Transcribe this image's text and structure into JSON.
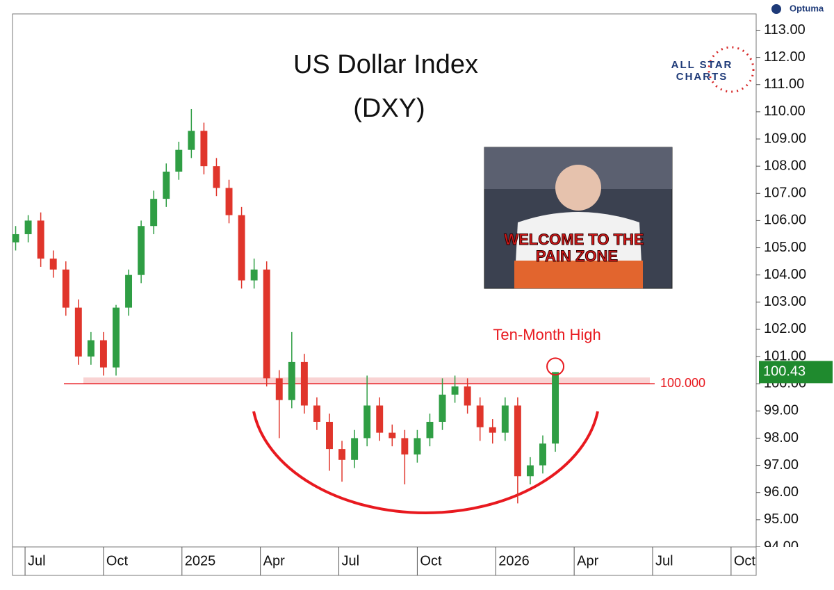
{
  "chart_data": {
    "type": "candlestick",
    "title": "US Dollar Index",
    "subtitle": "(DXY)",
    "annotation": "Ten-Month High",
    "image_caption": [
      "WELCOME TO THE",
      "PAIN ZONE"
    ],
    "logos": [
      "Optuma",
      "ALL STAR",
      "CHARTS"
    ],
    "up_color": "#2f9e44",
    "down_color": "#e0352b",
    "line_color": "#e8191f",
    "hline": {
      "value": 100,
      "label": "100.000"
    },
    "last_price": 100.43,
    "x": [
      2024.47,
      2024.51,
      2024.55,
      2024.59,
      2024.63,
      2024.67,
      2024.71,
      2024.75,
      2024.79,
      2024.83,
      2024.87,
      2024.91,
      2024.95,
      2024.99,
      2025.03,
      2025.07,
      2025.11,
      2025.15,
      2025.19,
      2025.23,
      2025.27,
      2025.31,
      2025.35,
      2025.39,
      2025.43,
      2025.47,
      2025.51,
      2025.55,
      2025.59,
      2025.63,
      2025.67,
      2025.71,
      2025.75,
      2025.79,
      2025.83,
      2025.87,
      2025.91,
      2025.95,
      2025.99,
      2026.03,
      2026.07,
      2026.11,
      2026.15,
      2026.19
    ],
    "open": [
      105.2,
      105.5,
      106.0,
      104.6,
      104.2,
      102.8,
      101.0,
      101.6,
      100.6,
      102.8,
      104.0,
      105.8,
      106.8,
      107.8,
      108.6,
      109.3,
      108.0,
      107.2,
      106.2,
      103.8,
      104.2,
      100.2,
      99.4,
      100.8,
      99.2,
      98.6,
      97.6,
      97.2,
      98.0,
      99.2,
      98.2,
      98.0,
      97.4,
      98.0,
      98.6,
      99.6,
      99.9,
      99.2,
      98.4,
      98.2,
      99.2,
      96.6,
      97.0,
      97.8
    ],
    "high": [
      105.8,
      106.2,
      106.3,
      104.9,
      104.5,
      103.1,
      101.9,
      101.9,
      102.9,
      104.2,
      106.0,
      107.1,
      108.1,
      108.9,
      110.1,
      109.6,
      108.3,
      107.5,
      106.5,
      104.6,
      104.5,
      100.5,
      101.9,
      101.1,
      99.5,
      98.9,
      97.9,
      98.3,
      100.3,
      99.5,
      98.5,
      98.3,
      98.3,
      98.9,
      100.2,
      100.3,
      100.2,
      99.5,
      98.7,
      99.5,
      99.5,
      97.3,
      98.1,
      100.43
    ],
    "low": [
      104.9,
      105.2,
      104.3,
      103.9,
      102.5,
      100.7,
      100.7,
      100.3,
      100.3,
      102.5,
      103.7,
      105.5,
      106.5,
      107.5,
      108.3,
      107.7,
      106.9,
      105.9,
      103.5,
      103.5,
      99.9,
      98.0,
      99.1,
      98.9,
      98.3,
      96.8,
      96.4,
      96.9,
      97.7,
      97.9,
      97.7,
      96.3,
      97.1,
      97.7,
      98.3,
      99.3,
      98.9,
      97.9,
      97.8,
      97.9,
      95.6,
      96.3,
      96.7,
      97.5
    ],
    "close": [
      105.5,
      106.0,
      104.6,
      104.2,
      102.8,
      101.0,
      101.6,
      100.6,
      102.8,
      104.0,
      105.8,
      106.8,
      107.8,
      108.6,
      109.3,
      108.0,
      107.2,
      106.2,
      103.8,
      104.2,
      100.2,
      99.4,
      100.8,
      99.2,
      98.6,
      97.6,
      97.2,
      98.0,
      99.2,
      98.2,
      98.0,
      97.4,
      98.0,
      98.6,
      99.6,
      99.9,
      99.2,
      98.4,
      98.2,
      99.2,
      96.6,
      97.0,
      97.8,
      100.43
    ],
    "xlim": [
      2024.46,
      2026.83
    ],
    "xticks": [
      {
        "value": 2024.5,
        "label": "Jul"
      },
      {
        "value": 2024.75,
        "label": "Oct"
      },
      2025,
      {
        "value": 2025.25,
        "label": "Apr"
      },
      {
        "value": 2025.5,
        "label": "Jul"
      },
      {
        "value": 2025.75,
        "label": "Oct"
      },
      2026,
      {
        "value": 2026.25,
        "label": "Apr"
      },
      {
        "value": 2026.5,
        "label": "Jul"
      },
      {
        "value": 2026.75,
        "label": "Oct"
      }
    ],
    "ylim": [
      94,
      113.6
    ],
    "yticks": [
      {
        "value": 94,
        "label": "94.00"
      },
      {
        "value": 95,
        "label": "95.00"
      },
      {
        "value": 96,
        "label": "96.00"
      },
      {
        "value": 97,
        "label": "97.00"
      },
      {
        "value": 98,
        "label": "98.00"
      },
      {
        "value": 99,
        "label": "99.00"
      },
      {
        "value": 100,
        "label": "100.00"
      },
      {
        "value": 101,
        "label": "101.00"
      },
      {
        "value": 102,
        "label": "102.00"
      },
      {
        "value": 103,
        "label": "103.00"
      },
      {
        "value": 104,
        "label": "104.00"
      },
      {
        "value": 105,
        "label": "105.00"
      },
      {
        "value": 106,
        "label": "106.00"
      },
      {
        "value": 107,
        "label": "107.00"
      },
      {
        "value": 108,
        "label": "108.00"
      },
      {
        "value": 109,
        "label": "109.00"
      },
      {
        "value": 110,
        "label": "110.00"
      },
      {
        "value": 111,
        "label": "111.00"
      },
      {
        "value": 112,
        "label": "112.00"
      },
      {
        "value": 113,
        "label": "113.00"
      }
    ]
  }
}
